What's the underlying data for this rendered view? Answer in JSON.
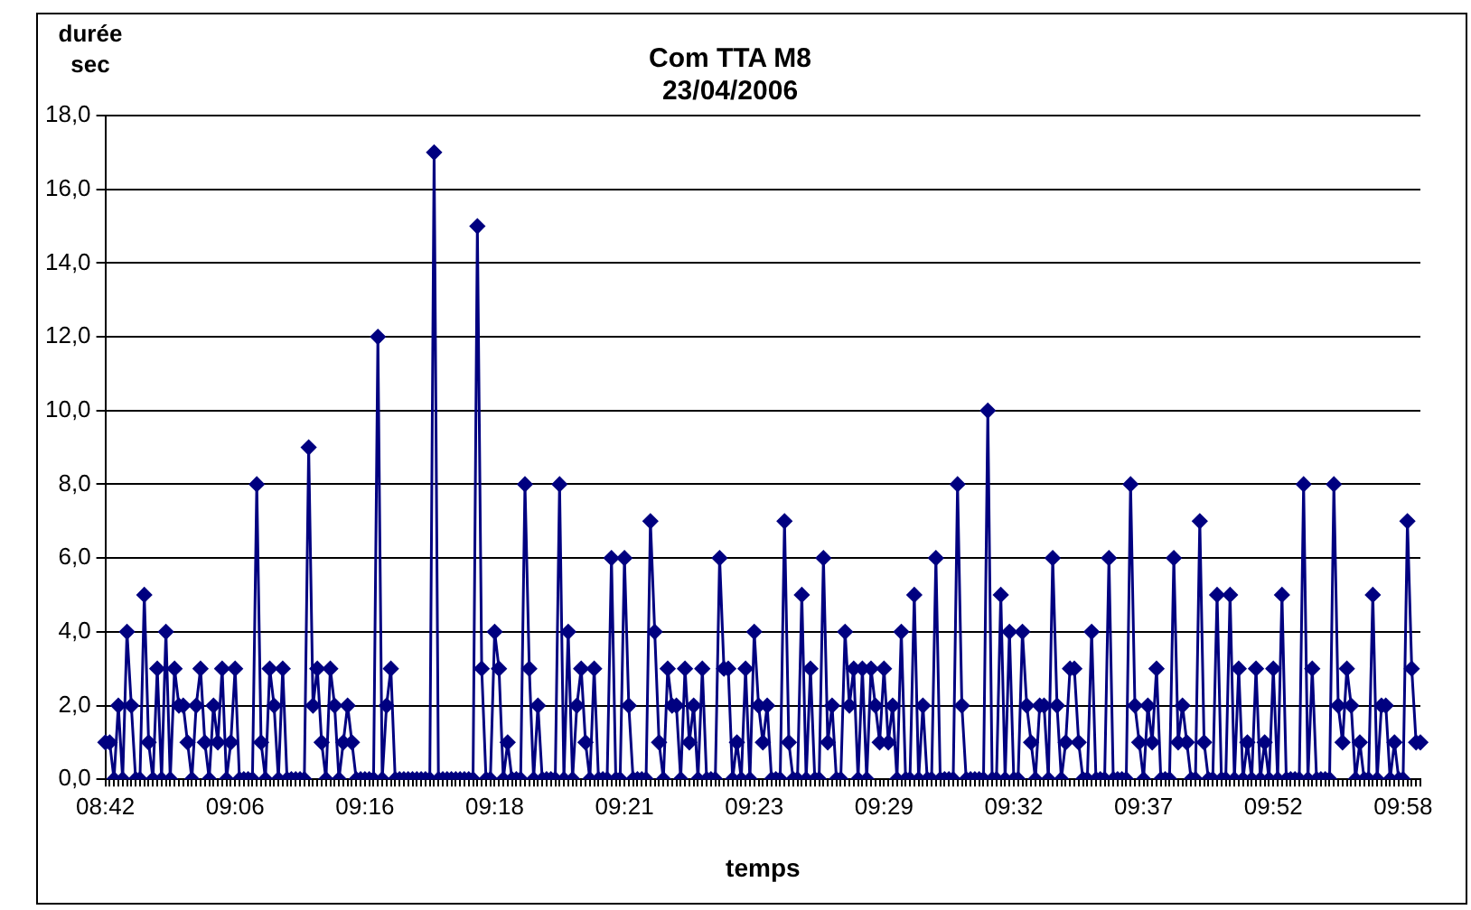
{
  "chart_data": {
    "type": "line",
    "title": "Com TTA M8",
    "subtitle": "23/04/2006",
    "xlabel": "temps",
    "ylabel": "durée sec",
    "categories": [
      "08:42",
      null,
      null,
      null,
      null,
      null,
      null,
      null,
      null,
      null,
      null,
      null,
      null,
      null,
      null,
      null,
      null,
      null,
      null,
      null,
      null,
      null,
      null,
      null,
      null,
      null,
      null,
      null,
      null,
      null,
      "09:06",
      null,
      null,
      null,
      null,
      null,
      null,
      null,
      null,
      null,
      null,
      null,
      null,
      null,
      null,
      null,
      null,
      null,
      null,
      null,
      null,
      null,
      null,
      null,
      null,
      null,
      null,
      null,
      null,
      null,
      "09:16",
      null,
      null,
      null,
      null,
      null,
      null,
      null,
      null,
      null,
      null,
      null,
      null,
      null,
      null,
      null,
      null,
      null,
      null,
      null,
      null,
      null,
      null,
      null,
      null,
      null,
      null,
      null,
      null,
      null,
      "09:18",
      null,
      null,
      null,
      null,
      null,
      null,
      null,
      null,
      null,
      null,
      null,
      null,
      null,
      null,
      null,
      null,
      null,
      null,
      null,
      null,
      null,
      null,
      null,
      null,
      null,
      null,
      null,
      null,
      null,
      "09:21",
      null,
      null,
      null,
      null,
      null,
      null,
      null,
      null,
      null,
      null,
      null,
      null,
      null,
      null,
      null,
      null,
      null,
      null,
      null,
      null,
      null,
      null,
      null,
      null,
      null,
      null,
      null,
      null,
      null,
      "09:23",
      null,
      null,
      null,
      null,
      null,
      null,
      null,
      null,
      null,
      null,
      null,
      null,
      null,
      null,
      null,
      null,
      null,
      null,
      null,
      null,
      null,
      null,
      null,
      null,
      null,
      null,
      null,
      null,
      null,
      "09:29",
      null,
      null,
      null,
      null,
      null,
      null,
      null,
      null,
      null,
      null,
      null,
      null,
      null,
      null,
      null,
      null,
      null,
      null,
      null,
      null,
      null,
      null,
      null,
      null,
      null,
      null,
      null,
      null,
      null,
      "09:32",
      null,
      null,
      null,
      null,
      null,
      null,
      null,
      null,
      null,
      null,
      null,
      null,
      null,
      null,
      null,
      null,
      null,
      null,
      null,
      null,
      null,
      null,
      null,
      null,
      null,
      null,
      null,
      null,
      null,
      "09:37",
      null,
      null,
      null,
      null,
      null,
      null,
      null,
      null,
      null,
      null,
      null,
      null,
      null,
      null,
      null,
      null,
      null,
      null,
      null,
      null,
      null,
      null,
      null,
      null,
      null,
      null,
      null,
      null,
      null,
      "09:52",
      null,
      null,
      null,
      null,
      null,
      null,
      null,
      null,
      null,
      null,
      null,
      null,
      null,
      null,
      null,
      null,
      null,
      null,
      null,
      null,
      null,
      null,
      null,
      null,
      null,
      null,
      null,
      null,
      null,
      "09:58",
      null,
      null,
      null,
      null
    ],
    "series": [
      {
        "color": "#000080",
        "values": [
          1,
          1,
          0,
          2,
          0,
          4,
          2,
          0,
          0,
          5,
          1,
          0,
          3,
          0,
          4,
          0,
          3,
          2,
          2,
          1,
          0,
          2,
          3,
          1,
          0,
          2,
          1,
          3,
          0,
          1,
          3,
          0,
          0,
          0,
          0,
          8,
          1,
          0,
          3,
          2,
          0,
          3,
          0,
          0,
          0,
          0,
          0,
          9,
          2,
          3,
          1,
          0,
          3,
          2,
          0,
          1,
          2,
          1,
          0,
          0,
          0,
          0,
          0,
          12,
          0,
          2,
          3,
          0,
          0,
          0,
          0,
          0,
          0,
          0,
          0,
          0,
          17,
          0,
          0,
          0,
          0,
          0,
          0,
          0,
          0,
          0,
          15,
          3,
          0,
          0,
          4,
          3,
          0,
          1,
          0,
          0,
          0,
          8,
          3,
          0,
          2,
          0,
          0,
          0,
          0,
          8,
          0,
          4,
          0,
          2,
          3,
          1,
          0,
          3,
          0,
          0,
          0,
          6,
          0,
          0,
          6,
          2,
          0,
          0,
          0,
          0,
          7,
          4,
          1,
          0,
          3,
          2,
          2,
          0,
          3,
          1,
          2,
          0,
          3,
          0,
          0,
          0,
          6,
          3,
          3,
          0,
          1,
          0,
          3,
          0,
          4,
          2,
          1,
          2,
          0,
          0,
          0,
          7,
          1,
          0,
          0,
          5,
          0,
          3,
          0,
          0,
          6,
          1,
          2,
          0,
          0,
          4,
          2,
          3,
          0,
          3,
          0,
          3,
          2,
          1,
          3,
          1,
          2,
          0,
          4,
          0,
          0,
          5,
          0,
          2,
          0,
          0,
          6,
          0,
          0,
          0,
          0,
          8,
          2,
          0,
          0,
          0,
          0,
          0,
          10,
          0,
          0,
          5,
          0,
          4,
          0,
          0,
          4,
          2,
          1,
          0,
          2,
          2,
          0,
          6,
          2,
          0,
          1,
          3,
          3,
          1,
          0,
          0,
          4,
          0,
          0,
          0,
          6,
          0,
          0,
          0,
          0,
          8,
          2,
          1,
          0,
          2,
          1,
          3,
          0,
          0,
          0,
          6,
          1,
          2,
          1,
          0,
          0,
          7,
          1,
          0,
          0,
          5,
          0,
          0,
          5,
          0,
          3,
          0,
          1,
          0,
          3,
          0,
          1,
          0,
          3,
          0,
          5,
          0,
          0,
          0,
          0,
          8,
          0,
          3,
          0,
          0,
          0,
          0,
          8,
          2,
          1,
          3,
          2,
          0,
          1,
          0,
          0,
          5,
          0,
          2,
          2,
          0,
          1,
          0,
          0,
          7,
          3,
          1,
          1
        ]
      }
    ],
    "ylim": [
      0,
      18
    ],
    "yticks": [
      {
        "value": 0,
        "label": "0,0"
      },
      {
        "value": 2,
        "label": "2,0"
      },
      {
        "value": 4,
        "label": "4,0"
      },
      {
        "value": 6,
        "label": "6,0"
      },
      {
        "value": 8,
        "label": "8,0"
      },
      {
        "value": 10,
        "label": "10,0"
      },
      {
        "value": 12,
        "label": "12,0"
      },
      {
        "value": 14,
        "label": "14,0"
      },
      {
        "value": 16,
        "label": "16,0"
      },
      {
        "value": 18,
        "label": "18,0"
      }
    ],
    "grid": "y",
    "legend": false,
    "marker": "diamond",
    "line_style": "solid"
  }
}
